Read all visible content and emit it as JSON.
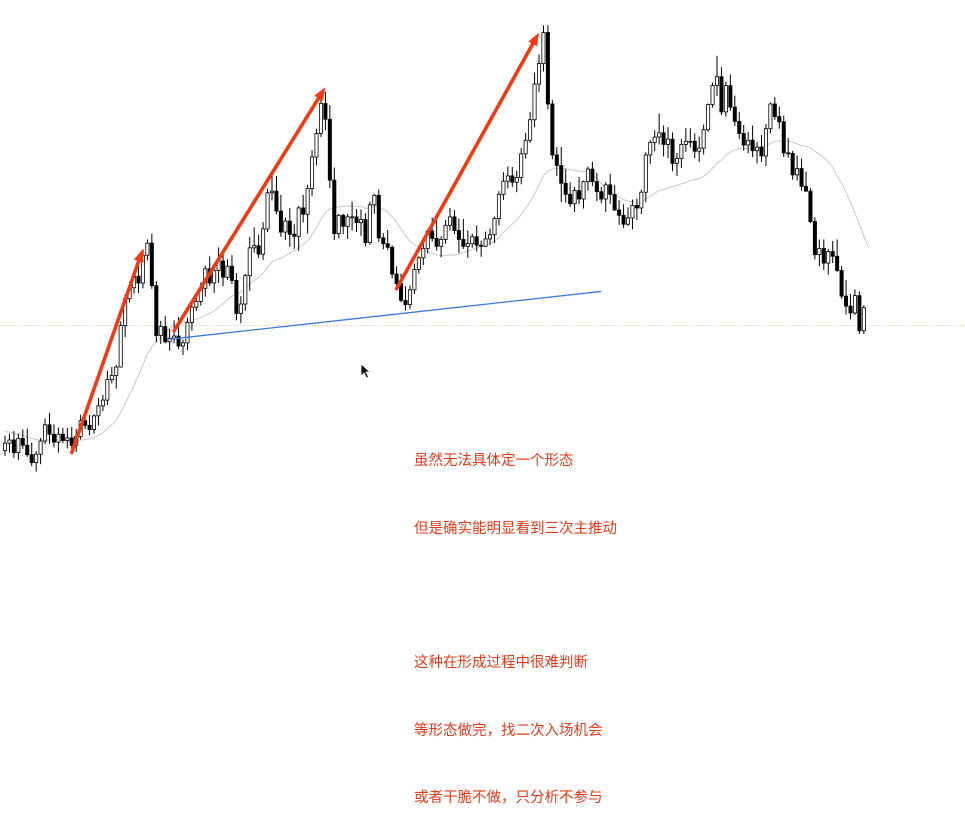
{
  "chart_data": {
    "type": "candlestick",
    "ylim": [
      0,
      100
    ],
    "grid": false,
    "ohlc": [
      [
        18,
        20.8,
        17.0,
        19.4
      ],
      [
        19.4,
        21.2,
        17.6,
        20.0
      ],
      [
        20,
        21.7,
        16.6,
        17.6
      ],
      [
        17.6,
        21.2,
        16.2,
        20.3
      ],
      [
        20.3,
        22.0,
        18.3,
        19.0
      ],
      [
        19,
        22.2,
        16.8,
        17.2
      ],
      [
        17.2,
        19.5,
        15.0,
        15.7
      ],
      [
        15.7,
        17.9,
        14.0,
        17.3
      ],
      [
        17.3,
        20.4,
        15.4,
        19.8
      ],
      [
        19.8,
        24.1,
        19.2,
        22.9
      ],
      [
        22.9,
        25.2,
        19.3,
        21.1
      ],
      [
        21.1,
        23.0,
        18.6,
        19.6
      ],
      [
        19.6,
        22.4,
        17.6,
        21.1
      ],
      [
        21.1,
        22.3,
        19.4,
        19.9
      ],
      [
        19.9,
        22.3,
        18.4,
        20.4
      ],
      [
        20.4,
        22.5,
        17.6,
        19.0
      ],
      [
        19,
        22.1,
        17.7,
        20.7
      ],
      [
        20.7,
        24.8,
        20.1,
        23.7
      ],
      [
        23.7,
        25.2,
        22.1,
        22.8
      ],
      [
        22.8,
        24.8,
        20.9,
        22.0
      ],
      [
        22,
        24.9,
        21.2,
        24.6
      ],
      [
        24.6,
        28.0,
        22.8,
        26.5
      ],
      [
        26.5,
        28.6,
        25.5,
        27.6
      ],
      [
        27.6,
        33.2,
        26.7,
        31.5
      ],
      [
        31.5,
        33.9,
        30.8,
        32.3
      ],
      [
        32.3,
        34.3,
        29.8,
        33.9
      ],
      [
        33.9,
        42.6,
        33.8,
        41.8
      ],
      [
        41.8,
        47.8,
        39.6,
        46.9
      ],
      [
        46.9,
        50.2,
        46.2,
        49.0
      ],
      [
        49,
        51.6,
        47.9,
        51.2
      ],
      [
        51.2,
        53.4,
        48.0,
        49.9
      ],
      [
        49.9,
        56.3,
        48.9,
        55.2
      ],
      [
        55.2,
        58.2,
        54.2,
        57.5
      ],
      [
        57.5,
        59.3,
        48.8,
        49.4
      ],
      [
        49.4,
        50.3,
        38.6,
        39.9
      ],
      [
        39.9,
        42.7,
        38.3,
        41.6
      ],
      [
        41.6,
        43.6,
        38.4,
        38.7
      ],
      [
        38.7,
        41.2,
        37.0,
        39.4
      ],
      [
        39.4,
        42.8,
        38.4,
        39.8
      ],
      [
        39.8,
        43.4,
        37.3,
        37.9
      ],
      [
        37.9,
        39.1,
        36.2,
        38.5
      ],
      [
        38.5,
        43.3,
        37.1,
        42.4
      ],
      [
        42.4,
        46.4,
        40.8,
        45.3
      ],
      [
        45.3,
        47.8,
        44.6,
        46.4
      ],
      [
        46.4,
        50.0,
        45.6,
        48.9
      ],
      [
        48.9,
        53.2,
        47.3,
        52.6
      ],
      [
        52.6,
        55.0,
        49.3,
        49.9
      ],
      [
        49.9,
        53.1,
        48.0,
        52.3
      ],
      [
        52.3,
        56.7,
        49.9,
        54.1
      ],
      [
        54.1,
        55.6,
        49.3,
        51.0
      ],
      [
        51,
        54.4,
        50.5,
        53.1
      ],
      [
        53.1,
        55.2,
        49.7,
        50.4
      ],
      [
        50.4,
        51.8,
        42.8,
        44.1
      ],
      [
        44.1,
        47.4,
        42.2,
        45.9
      ],
      [
        45.9,
        51.6,
        44.6,
        51.3
      ],
      [
        51.3,
        58.7,
        48.4,
        56.6
      ],
      [
        56.6,
        60.5,
        55.7,
        57.0
      ],
      [
        57,
        59.1,
        54.7,
        55.4
      ],
      [
        55.4,
        61.5,
        54.3,
        60.2
      ],
      [
        60.2,
        67.9,
        59.6,
        67.1
      ],
      [
        67.1,
        70.7,
        65.6,
        67.4
      ],
      [
        67.4,
        70.3,
        63.0,
        63.6
      ],
      [
        63.6,
        66.7,
        58.7,
        59.6
      ],
      [
        59.6,
        62.4,
        58.1,
        61.7
      ],
      [
        61.7,
        64.2,
        56.8,
        59.2
      ],
      [
        59.2,
        61.1,
        56.4,
        58.8
      ],
      [
        58.8,
        64.6,
        56.0,
        64.2
      ],
      [
        64.2,
        66.7,
        61.4,
        63.0
      ],
      [
        63,
        68.6,
        59.3,
        67.9
      ],
      [
        67.9,
        75.2,
        66.5,
        73.9
      ],
      [
        73.9,
        79.3,
        72.3,
        78.4
      ],
      [
        78.4,
        85.7,
        77.7,
        84.1
      ],
      [
        84.1,
        86.3,
        79.0,
        81.1
      ],
      [
        81.1,
        83.8,
        68.0,
        69.5
      ],
      [
        69.5,
        71.9,
        58.1,
        59.3
      ],
      [
        59.3,
        63.1,
        58.4,
        62.8
      ],
      [
        62.8,
        63.1,
        59.2,
        60.7
      ],
      [
        60.7,
        63.1,
        58.3,
        62.5
      ],
      [
        62.5,
        65.4,
        59.9,
        62.5
      ],
      [
        62.5,
        64.0,
        59.6,
        61.4
      ],
      [
        61.4,
        63.9,
        58.9,
        62.0
      ],
      [
        62,
        63.2,
        56.9,
        57.6
      ],
      [
        57.6,
        65.4,
        57.2,
        64.8
      ],
      [
        64.8,
        66.9,
        63.1,
        66.6
      ],
      [
        66.6,
        67.7,
        57.7,
        58.5
      ],
      [
        58.5,
        59.4,
        56.3,
        57.4
      ],
      [
        57.4,
        60.0,
        56.2,
        56.7
      ],
      [
        56.7,
        57.1,
        50.8,
        51.6
      ],
      [
        51.6,
        53.1,
        48.8,
        49.8
      ],
      [
        49.8,
        51.7,
        46.2,
        46.6
      ],
      [
        46.6,
        49.3,
        44.7,
        45.8
      ],
      [
        45.8,
        49.4,
        44.9,
        48.6
      ],
      [
        48.6,
        53.6,
        47.8,
        52.5
      ],
      [
        52.5,
        55.0,
        51.7,
        54.7
      ],
      [
        54.7,
        58.6,
        53.3,
        56.5
      ],
      [
        56.5,
        60.2,
        55.5,
        59.8
      ],
      [
        59.8,
        62.4,
        57.8,
        58.4
      ],
      [
        58.4,
        61.8,
        56.1,
        56.9
      ],
      [
        56.9,
        58.8,
        54.8,
        58.2
      ],
      [
        58.2,
        61.9,
        57.4,
        60.9
      ],
      [
        60.9,
        64.2,
        59.9,
        62.5
      ],
      [
        62.5,
        63.8,
        59.2,
        59.9
      ],
      [
        59.9,
        62.2,
        55.6,
        58.2
      ],
      [
        58.2,
        62.1,
        56.4,
        56.9
      ],
      [
        56.9,
        59.9,
        54.7,
        57.4
      ],
      [
        57.4,
        59.3,
        56.6,
        58.7
      ],
      [
        58.7,
        60.9,
        55.9,
        57.1
      ],
      [
        57.1,
        58.0,
        54.9,
        56.9
      ],
      [
        56.9,
        59.7,
        56.8,
        58.3
      ],
      [
        58.3,
        60.3,
        57.1,
        59.1
      ],
      [
        59.1,
        62.6,
        57.5,
        62.2
      ],
      [
        62.2,
        67.4,
        60.9,
        66.8
      ],
      [
        66.8,
        71.0,
        65.7,
        69.3
      ],
      [
        69.3,
        72.1,
        67.9,
        70.3
      ],
      [
        70.3,
        72.0,
        68.2,
        69.1
      ],
      [
        69.1,
        71.3,
        67.2,
        70.0
      ],
      [
        70,
        75.6,
        68.7,
        74.5
      ],
      [
        74.5,
        78.5,
        73.6,
        77.1
      ],
      [
        77.1,
        82.5,
        76.6,
        81.0
      ],
      [
        81,
        90.0,
        79.6,
        87.8
      ],
      [
        87.8,
        93.4,
        86.3,
        91.7
      ],
      [
        91.7,
        99.0,
        90.2,
        97.6
      ],
      [
        97.6,
        99.0,
        83.0,
        84.0
      ],
      [
        84,
        84.8,
        73.5,
        74.3
      ],
      [
        74.3,
        75.8,
        70.3,
        72.3
      ],
      [
        72.3,
        75.8,
        65.3,
        68.9
      ],
      [
        68.9,
        71.6,
        65.2,
        66.8
      ],
      [
        66.8,
        69.1,
        64.4,
        65.0
      ],
      [
        65,
        68.2,
        63.4,
        67.5
      ],
      [
        67.5,
        70.1,
        64.9,
        65.9
      ],
      [
        65.9,
        69.4,
        64.1,
        69.2
      ],
      [
        69.2,
        72.1,
        67.5,
        71.6
      ],
      [
        71.6,
        73.0,
        68.4,
        69.2
      ],
      [
        69.2,
        70.9,
        65.5,
        67.3
      ],
      [
        67.3,
        68.2,
        65.1,
        65.9
      ],
      [
        65.9,
        69.1,
        63.4,
        68.6
      ],
      [
        68.6,
        70.7,
        65.0,
        66.8
      ],
      [
        66.8,
        68.5,
        63.7,
        63.8
      ],
      [
        63.8,
        65.7,
        61.0,
        62.8
      ],
      [
        62.8,
        64.9,
        60.4,
        61.1
      ],
      [
        61.1,
        64.3,
        60.8,
        62.3
      ],
      [
        62.3,
        65.8,
        60.1,
        64.7
      ],
      [
        64.7,
        66.0,
        61.9,
        64.2
      ],
      [
        64.2,
        67.7,
        63.0,
        67.2
      ],
      [
        67.2,
        74.8,
        65.3,
        74.3
      ],
      [
        74.3,
        77.1,
        72.6,
        76.7
      ],
      [
        76.7,
        79.0,
        75.0,
        77.7
      ],
      [
        77.7,
        82.2,
        76.3,
        78.5
      ],
      [
        78.5,
        79.9,
        74.0,
        76.3
      ],
      [
        76.3,
        79.6,
        73.7,
        77.3
      ],
      [
        77.3,
        78.6,
        71.2,
        72.7
      ],
      [
        72.7,
        74.7,
        70.3,
        73.6
      ],
      [
        73.6,
        77.3,
        71.8,
        76.3
      ],
      [
        76.3,
        79.4,
        74.9,
        76.9
      ],
      [
        76.9,
        79.4,
        75.7,
        76.9
      ],
      [
        76.9,
        78.4,
        73.7,
        75.0
      ],
      [
        75,
        77.8,
        73.0,
        75.6
      ],
      [
        75.6,
        80.1,
        74.4,
        79.1
      ],
      [
        79.1,
        84.1,
        78.7,
        83.9
      ],
      [
        83.9,
        88.1,
        83.3,
        87.5
      ],
      [
        87.5,
        93.2,
        85.5,
        89.2
      ],
      [
        89.2,
        91.0,
        81.9,
        82.5
      ],
      [
        82.5,
        88.3,
        81.6,
        87.5
      ],
      [
        87.5,
        89.6,
        82.7,
        83.4
      ],
      [
        83.4,
        85.6,
        79.8,
        80.7
      ],
      [
        80.7,
        82.5,
        77.3,
        78.4
      ],
      [
        78.4,
        80.0,
        75.1,
        76.2
      ],
      [
        76.2,
        78.7,
        74.6,
        77.1
      ],
      [
        77.1,
        79.9,
        73.9,
        75.1
      ],
      [
        75.1,
        76.8,
        72.7,
        75.8
      ],
      [
        75.8,
        78.1,
        73.0,
        74.1
      ],
      [
        74.1,
        80.2,
        72.2,
        79.3
      ],
      [
        79.3,
        84.3,
        78.4,
        84.0
      ],
      [
        84,
        85.3,
        81.0,
        81.6
      ],
      [
        81.6,
        83.5,
        79.3,
        80.6
      ],
      [
        80.6,
        81.8,
        73.9,
        74.7
      ],
      [
        74.7,
        77.5,
        73.8,
        74.6
      ],
      [
        74.6,
        75.1,
        69.6,
        70.5
      ],
      [
        70.5,
        74.2,
        69.4,
        71.7
      ],
      [
        71.7,
        73.6,
        67.5,
        68.3
      ],
      [
        68.3,
        71.1,
        67.3,
        67.4
      ],
      [
        67.4,
        68.0,
        61.3,
        61.6
      ],
      [
        61.6,
        62.4,
        54.4,
        55.3
      ],
      [
        55.3,
        58.2,
        53.1,
        56.5
      ],
      [
        56.5,
        58.2,
        52.4,
        53.7
      ],
      [
        53.7,
        56.4,
        51.5,
        55.9
      ],
      [
        55.9,
        57.9,
        53.7,
        55.0
      ],
      [
        55,
        58.2,
        52.0,
        52.3
      ],
      [
        52.3,
        53.1,
        46.9,
        47.4
      ],
      [
        47.4,
        50.5,
        43.9,
        45.5
      ],
      [
        45.5,
        47.8,
        43.0,
        44.2
      ],
      [
        44.2,
        48.7,
        43.8,
        47.5
      ],
      [
        47.5,
        48.3,
        40.2,
        40.8
      ],
      [
        40.8,
        45.7,
        40.2,
        45.2
      ]
    ],
    "moving_average": [
      21.6,
      21.5,
      21.3,
      21.1,
      20.9,
      20.6,
      20.3,
      20.1,
      20.0,
      20.0,
      20.0,
      20.0,
      19.9,
      19.9,
      19.8,
      19.8,
      19.8,
      20.0,
      20.1,
      20.2,
      20.4,
      20.9,
      21.4,
      22.2,
      22.9,
      23.8,
      25.2,
      26.9,
      28.6,
      30.5,
      32.3,
      34.3,
      36.4,
      37.8,
      38.7,
      39.7,
      40.5,
      41.3,
      41.9,
      42.3,
      42.5,
      42.6,
      42.8,
      43.0,
      43.3,
      43.8,
      44.1,
      44.6,
      45.3,
      45.9,
      46.7,
      47.4,
      47.7,
      48.2,
      48.8,
      49.7,
      50.4,
      51.0,
      51.8,
      52.9,
      53.9,
      54.4,
      54.6,
      55.1,
      55.6,
      56.0,
      56.7,
      57.2,
      57.9,
      59.1,
      60.4,
      62.0,
      63.3,
      64.0,
      64.2,
      64.4,
      64.5,
      64.6,
      64.6,
      64.5,
      64.5,
      64.1,
      64.2,
      64.5,
      64.3,
      63.9,
      63.4,
      62.5,
      61.4,
      60.2,
      58.9,
      57.9,
      57.2,
      56.6,
      56.2,
      55.9,
      55.6,
      55.3,
      55.1,
      55.1,
      55.3,
      55.2,
      55.4,
      55.7,
      56.0,
      56.3,
      56.6,
      56.9,
      57.2,
      57.5,
      57.8,
      58.6,
      59.5,
      60.3,
      61.1,
      61.9,
      63.0,
      64.1,
      65.4,
      66.9,
      68.6,
      70.4,
      71.3,
      71.6,
      71.8,
      71.8,
      71.7,
      71.5,
      71.4,
      71.2,
      71.1,
      71.0,
      70.6,
      69.8,
      68.9,
      68.0,
      67.2,
      66.6,
      66.2,
      65.8,
      65.5,
      65.4,
      65.3,
      65.4,
      65.9,
      66.4,
      67.0,
      67.5,
      67.7,
      68.0,
      68.3,
      68.5,
      68.8,
      69.0,
      69.4,
      69.6,
      69.8,
      70.2,
      70.9,
      71.8,
      72.7,
      73.4,
      74.2,
      74.8,
      75.3,
      75.5,
      75.5,
      75.5,
      75.5,
      75.6,
      75.8,
      76.1,
      76.5,
      76.9,
      77.0,
      76.9,
      76.9,
      76.7,
      76.4,
      76.1,
      75.9,
      75.6,
      75.0,
      74.5,
      73.8,
      73.0,
      71.9,
      70.4,
      68.9,
      67.1,
      65.3,
      63.2,
      61.1,
      58.8,
      56.7
    ],
    "trendline": [
      [
        37,
        39.2
      ],
      [
        134,
        48.3
      ]
    ],
    "impulse_arrows": [
      [
        [
          15,
          17.6
        ],
        [
          31,
          56.4
        ]
      ],
      [
        [
          38,
          40.8
        ],
        [
          72,
          87.2
        ]
      ],
      [
        [
          88,
          48.8
        ],
        [
          120,
          97.6
        ]
      ]
    ],
    "reference_level": 41.8,
    "colors": {
      "candle_up": "#ffffff",
      "candle_down": "#000000",
      "wick": "#000000",
      "moving_average": "#c8c8c8",
      "trendline": "#3c78e0",
      "arrow": "#ee3b14",
      "reference_line": "#e8c9a6",
      "annotation_text": "#e23b1c"
    }
  },
  "annotations": {
    "line1": "虽然无法具体定一个形态",
    "line2": "但是确实能明显看到三次主推动",
    "line3": "这种在形成过程中很难判断",
    "line4": "等形态做完，找二次入场机会",
    "line5": "或者干脆不做，只分析不参与"
  },
  "icons": {
    "cursor": "mouse-pointer-icon"
  }
}
